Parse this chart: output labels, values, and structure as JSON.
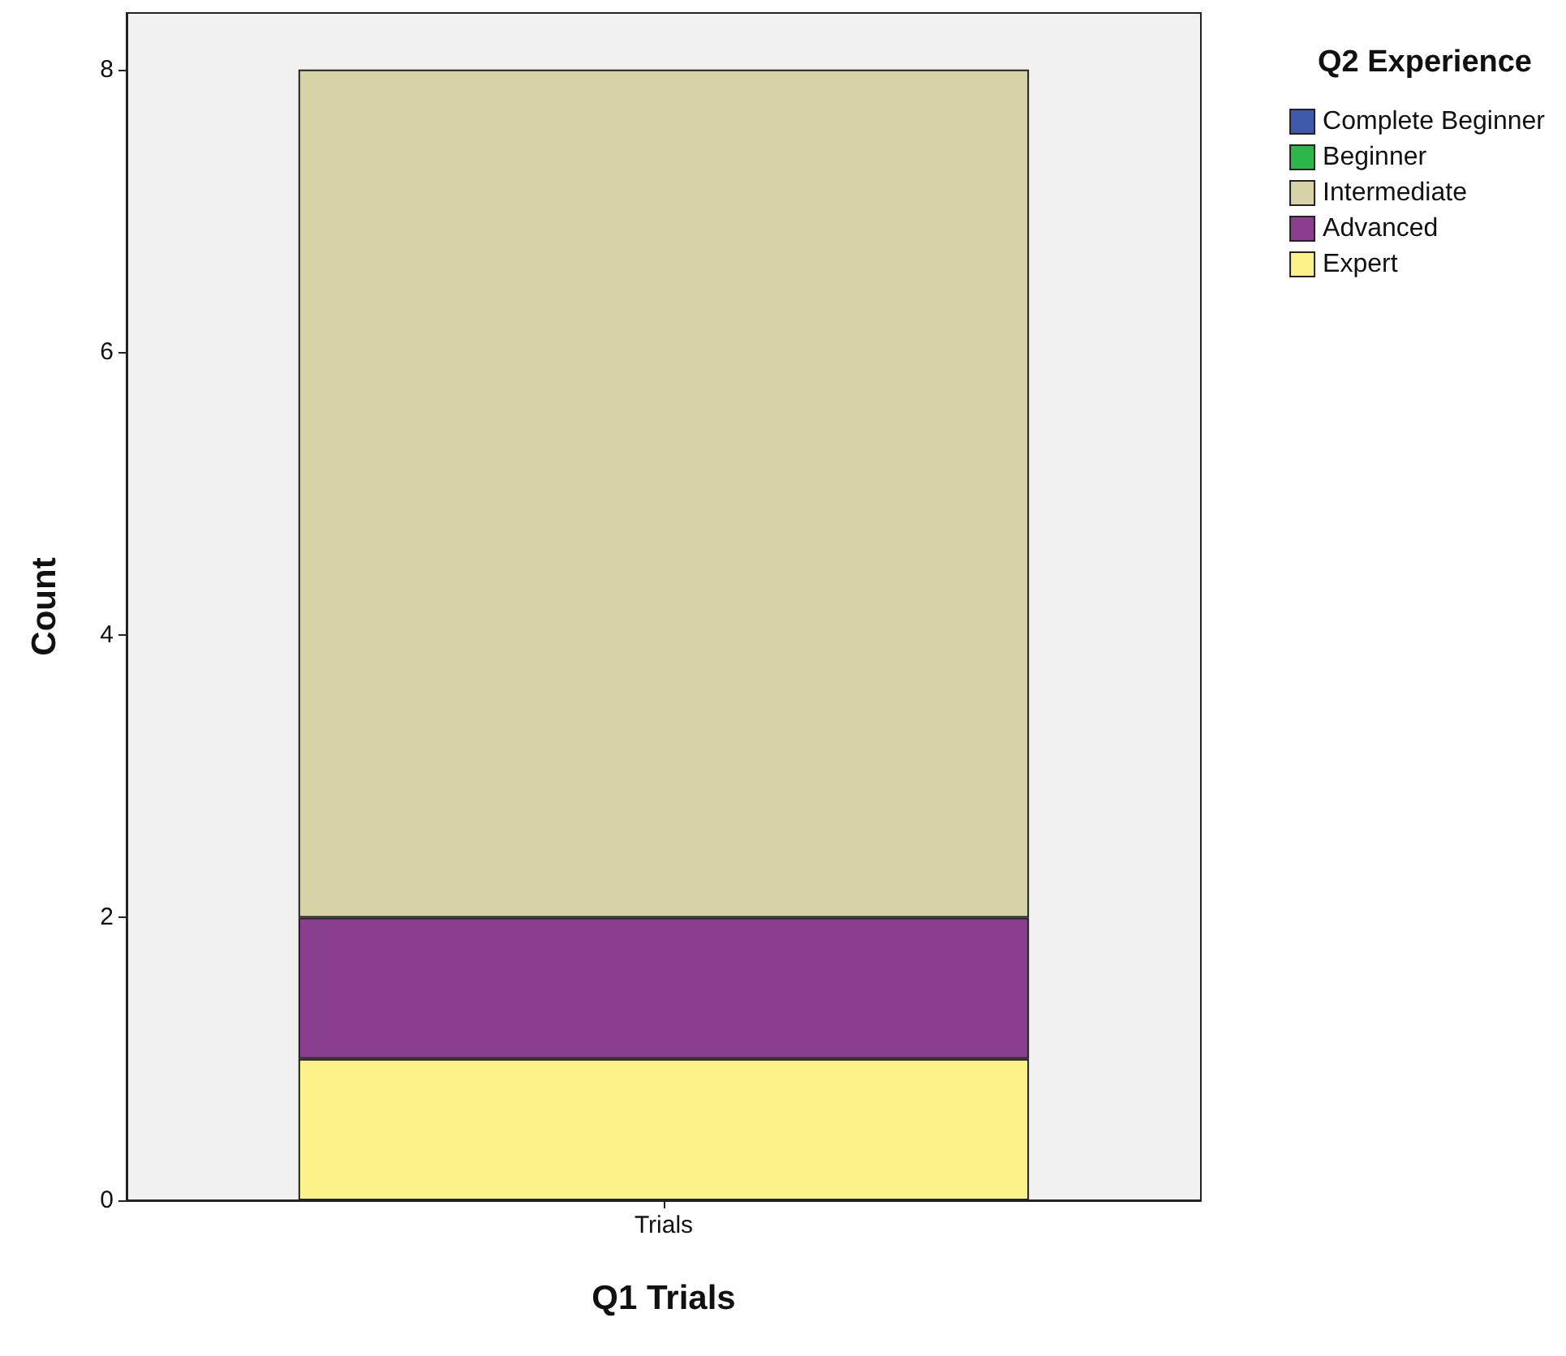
{
  "chart_data": {
    "type": "bar",
    "stacked": true,
    "xlabel": "Q1 Trials",
    "ylabel": "Count",
    "legend_title": "Q2 Experience",
    "legend": "right",
    "categories": [
      "Trials"
    ],
    "series": [
      {
        "name": "Expert",
        "color": "#fbf38a",
        "values": [
          1
        ]
      },
      {
        "name": "Advanced",
        "color": "#8a3e8e",
        "values": [
          1
        ]
      },
      {
        "name": "Intermediate",
        "color": "#d8d3a7",
        "values": [
          6
        ]
      },
      {
        "name": "Beginner",
        "color": "#2fb64a",
        "values": [
          0
        ]
      },
      {
        "name": "Complete Beginner",
        "color": "#3f5aab",
        "values": [
          0
        ]
      }
    ],
    "ylim": [
      0,
      8.4
    ],
    "yticks": [
      0,
      2,
      4,
      6,
      8
    ],
    "grid": false
  }
}
